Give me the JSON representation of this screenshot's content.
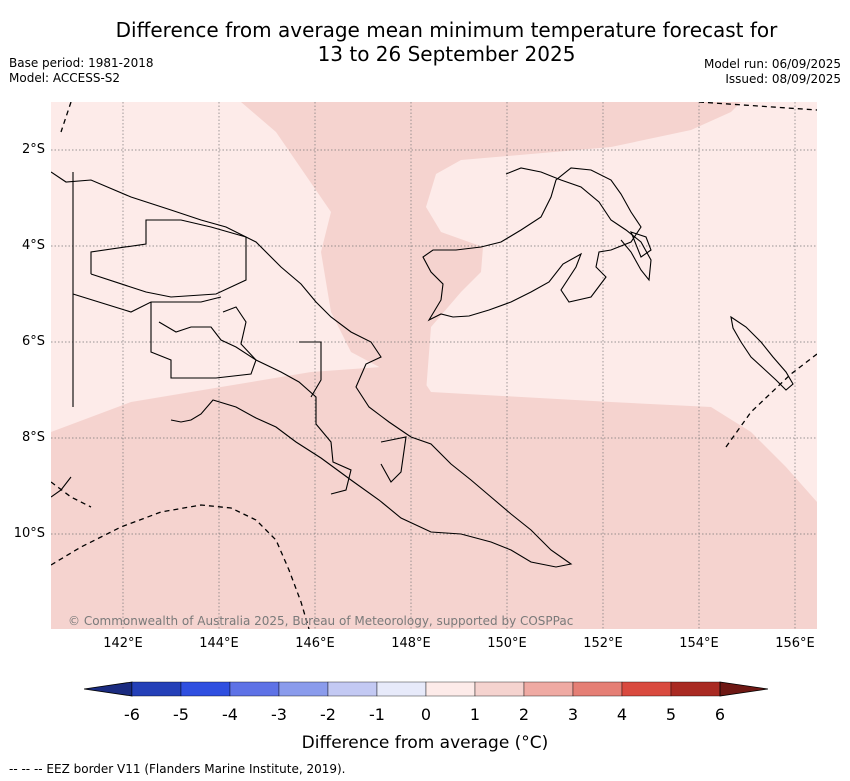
{
  "header": {
    "title_line1": "Difference from average mean minimum temperature forecast for",
    "title_line2": "13 to 26 September 2025",
    "base_period": "Base period: 1981-2018",
    "model": "Model: ACCESS-S2",
    "model_run": "Model run: 06/09/2025",
    "issued": "Issued: 08/09/2025"
  },
  "map": {
    "copyright": "© Commonwealth of Australia 2025, Bureau of Meteorology, supported by COSPPac",
    "lat_labels": [
      "2°S",
      "4°S",
      "6°S",
      "8°S",
      "10°S"
    ],
    "lon_labels": [
      "142°E",
      "144°E",
      "146°E",
      "148°E",
      "150°E",
      "152°E",
      "154°E",
      "156°E"
    ],
    "fill_colors": {
      "zero_to_one": "#fdebe9",
      "one_to_two": "#f5d3cf"
    }
  },
  "colorbar": {
    "ticks": [
      "-6",
      "-5",
      "-4",
      "-3",
      "-2",
      "-1",
      "0",
      "1",
      "2",
      "3",
      "4",
      "5",
      "6"
    ],
    "colors": [
      "#1a2b80",
      "#2440b8",
      "#2f4fe0",
      "#5e72e6",
      "#8a9bec",
      "#c3c9f3",
      "#e7eafa",
      "#fdebe9",
      "#f5d3cf",
      "#efaaa3",
      "#e57f75",
      "#d94a3f",
      "#a92a22",
      "#6e1814"
    ],
    "label": "Difference from average (°C)"
  },
  "legend": {
    "eez_note": "-- -- -- EEZ border V11 (Flanders Marine Institute, 2019)."
  }
}
